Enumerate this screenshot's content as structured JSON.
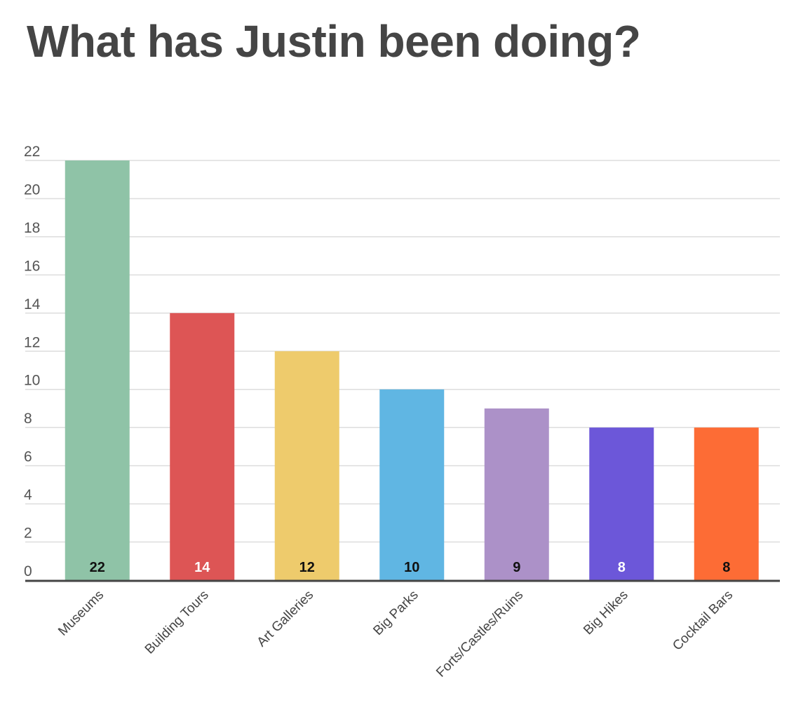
{
  "chart_data": {
    "type": "bar",
    "title": "What has Justin been doing?",
    "xlabel": "",
    "ylabel": "",
    "categories": [
      "Museums",
      "Building Tours",
      "Art Galleries",
      "Big Parks",
      "Forts/Castles/Ruins",
      "Big Hikes",
      "Cocktail Bars"
    ],
    "values": [
      22,
      14,
      12,
      10,
      9,
      8,
      8
    ],
    "colors": [
      "#8fc3a7",
      "#dd5555",
      "#eecb6c",
      "#60b6e3",
      "#ac91c8",
      "#6c57d9",
      "#fd6c35"
    ],
    "data_label_colors": [
      "#111111",
      "#ffffff",
      "#111111",
      "#111111",
      "#111111",
      "#ffffff",
      "#111111"
    ],
    "ylim": [
      0,
      22
    ],
    "yticks": [
      0,
      2,
      4,
      6,
      8,
      10,
      12,
      14,
      16,
      18,
      20,
      22
    ],
    "grid": true,
    "legend": "none"
  }
}
